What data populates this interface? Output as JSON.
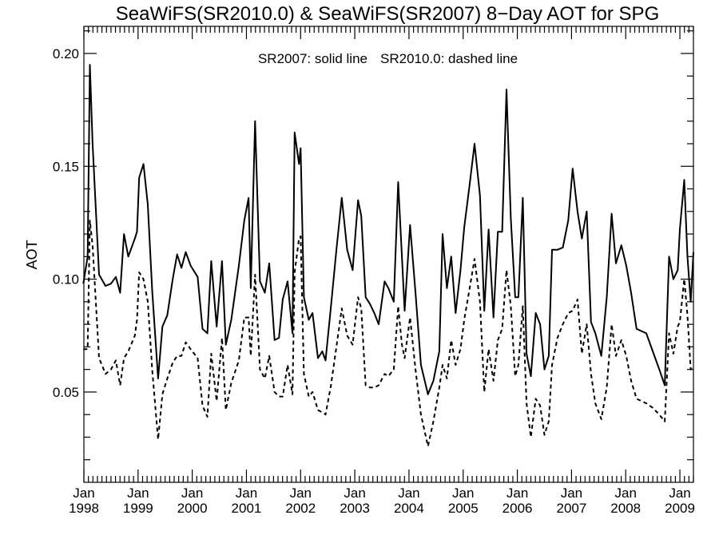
{
  "chart_data": {
    "type": "line",
    "title": "SeaWiFS(SR2010.0) & SeaWiFS(SR2007) 8−Day AOT for SPG",
    "annotation_left": "SR2007: solid line",
    "annotation_right": "SR2010.0: dashed line",
    "xlabel": "",
    "ylabel": "AOT",
    "xlim": [
      1998.0,
      2009.25
    ],
    "ylim": [
      0.01,
      0.212
    ],
    "x_ticks": [
      {
        "x": 1998,
        "month": "Jan",
        "year": "1998"
      },
      {
        "x": 1999,
        "month": "Jan",
        "year": "1999"
      },
      {
        "x": 2000,
        "month": "Jan",
        "year": "2000"
      },
      {
        "x": 2001,
        "month": "Jan",
        "year": "2001"
      },
      {
        "x": 2002,
        "month": "Jan",
        "year": "2002"
      },
      {
        "x": 2003,
        "month": "Jan",
        "year": "2003"
      },
      {
        "x": 2004,
        "month": "Jan",
        "year": "2004"
      },
      {
        "x": 2005,
        "month": "Jan",
        "year": "2005"
      },
      {
        "x": 2006,
        "month": "Jan",
        "year": "2006"
      },
      {
        "x": 2007,
        "month": "Jan",
        "year": "2007"
      },
      {
        "x": 2008,
        "month": "Jan",
        "year": "2008"
      },
      {
        "x": 2009,
        "month": "Jan",
        "year": "2009"
      }
    ],
    "y_ticks": [
      {
        "value": 0.05,
        "label": "0.05"
      },
      {
        "value": 0.1,
        "label": "0.10"
      },
      {
        "value": 0.15,
        "label": "0.15"
      },
      {
        "value": 0.2,
        "label": "0.20"
      }
    ],
    "grid": false,
    "series": [
      {
        "name": "SR2007",
        "style": "solid",
        "points": [
          [
            1997.99,
            0.098
          ],
          [
            1998.07,
            0.11
          ],
          [
            1998.11,
            0.195
          ],
          [
            1998.16,
            0.16
          ],
          [
            1998.28,
            0.102
          ],
          [
            1998.4,
            0.097
          ],
          [
            1998.5,
            0.098
          ],
          [
            1998.59,
            0.101
          ],
          [
            1998.67,
            0.094
          ],
          [
            1998.74,
            0.12
          ],
          [
            1998.82,
            0.11
          ],
          [
            1998.94,
            0.118
          ],
          [
            1998.98,
            0.121
          ],
          [
            1999.02,
            0.145
          ],
          [
            1999.1,
            0.151
          ],
          [
            1999.18,
            0.133
          ],
          [
            1999.26,
            0.095
          ],
          [
            1999.37,
            0.056
          ],
          [
            1999.45,
            0.079
          ],
          [
            1999.54,
            0.084
          ],
          [
            1999.64,
            0.1
          ],
          [
            1999.72,
            0.111
          ],
          [
            1999.8,
            0.105
          ],
          [
            1999.88,
            0.112
          ],
          [
            1999.97,
            0.106
          ],
          [
            2000.1,
            0.101
          ],
          [
            2000.19,
            0.078
          ],
          [
            2000.28,
            0.076
          ],
          [
            2000.35,
            0.108
          ],
          [
            2000.45,
            0.079
          ],
          [
            2000.55,
            0.108
          ],
          [
            2000.62,
            0.071
          ],
          [
            2000.72,
            0.082
          ],
          [
            2000.86,
            0.106
          ],
          [
            2000.96,
            0.126
          ],
          [
            2001.04,
            0.136
          ],
          [
            2001.08,
            0.096
          ],
          [
            2001.16,
            0.17
          ],
          [
            2001.25,
            0.099
          ],
          [
            2001.34,
            0.094
          ],
          [
            2001.42,
            0.107
          ],
          [
            2001.52,
            0.073
          ],
          [
            2001.6,
            0.074
          ],
          [
            2001.67,
            0.091
          ],
          [
            2001.76,
            0.099
          ],
          [
            2001.85,
            0.076
          ],
          [
            2001.89,
            0.165
          ],
          [
            2001.97,
            0.151
          ],
          [
            2002.0,
            0.158
          ],
          [
            2002.06,
            0.092
          ],
          [
            2002.15,
            0.082
          ],
          [
            2002.22,
            0.085
          ],
          [
            2002.32,
            0.065
          ],
          [
            2002.4,
            0.068
          ],
          [
            2002.46,
            0.064
          ],
          [
            2002.56,
            0.088
          ],
          [
            2002.66,
            0.113
          ],
          [
            2002.76,
            0.136
          ],
          [
            2002.86,
            0.113
          ],
          [
            2002.96,
            0.104
          ],
          [
            2003.06,
            0.135
          ],
          [
            2003.12,
            0.128
          ],
          [
            2003.2,
            0.092
          ],
          [
            2003.28,
            0.089
          ],
          [
            2003.36,
            0.085
          ],
          [
            2003.44,
            0.08
          ],
          [
            2003.55,
            0.099
          ],
          [
            2003.62,
            0.096
          ],
          [
            2003.72,
            0.09
          ],
          [
            2003.8,
            0.143
          ],
          [
            2003.87,
            0.11
          ],
          [
            2003.92,
            0.086
          ],
          [
            2004.02,
            0.124
          ],
          [
            2004.12,
            0.094
          ],
          [
            2004.22,
            0.062
          ],
          [
            2004.35,
            0.049
          ],
          [
            2004.45,
            0.055
          ],
          [
            2004.56,
            0.068
          ],
          [
            2004.62,
            0.12
          ],
          [
            2004.7,
            0.096
          ],
          [
            2004.78,
            0.11
          ],
          [
            2004.86,
            0.085
          ],
          [
            2004.95,
            0.104
          ],
          [
            2005.02,
            0.123
          ],
          [
            2005.12,
            0.142
          ],
          [
            2005.21,
            0.16
          ],
          [
            2005.31,
            0.137
          ],
          [
            2005.39,
            0.086
          ],
          [
            2005.47,
            0.122
          ],
          [
            2005.56,
            0.083
          ],
          [
            2005.64,
            0.121
          ],
          [
            2005.72,
            0.121
          ],
          [
            2005.8,
            0.184
          ],
          [
            2005.88,
            0.127
          ],
          [
            2005.96,
            0.092
          ],
          [
            2006.02,
            0.092
          ],
          [
            2006.1,
            0.136
          ],
          [
            2006.17,
            0.067
          ],
          [
            2006.25,
            0.057
          ],
          [
            2006.34,
            0.085
          ],
          [
            2006.42,
            0.08
          ],
          [
            2006.5,
            0.06
          ],
          [
            2006.58,
            0.066
          ],
          [
            2006.64,
            0.113
          ],
          [
            2006.74,
            0.113
          ],
          [
            2006.84,
            0.114
          ],
          [
            2006.94,
            0.126
          ],
          [
            2007.02,
            0.149
          ],
          [
            2007.11,
            0.13
          ],
          [
            2007.19,
            0.118
          ],
          [
            2007.28,
            0.13
          ],
          [
            2007.36,
            0.081
          ],
          [
            2007.44,
            0.076
          ],
          [
            2007.55,
            0.066
          ],
          [
            2007.65,
            0.092
          ],
          [
            2007.74,
            0.129
          ],
          [
            2007.82,
            0.107
          ],
          [
            2007.92,
            0.115
          ],
          [
            2008.01,
            0.106
          ],
          [
            2008.1,
            0.094
          ],
          [
            2008.2,
            0.078
          ],
          [
            2008.29,
            0.077
          ],
          [
            2008.38,
            0.076
          ],
          [
            2008.5,
            0.068
          ],
          [
            2008.62,
            0.06
          ],
          [
            2008.72,
            0.053
          ],
          [
            2008.8,
            0.11
          ],
          [
            2008.88,
            0.1
          ],
          [
            2008.96,
            0.104
          ],
          [
            2009.0,
            0.122
          ],
          [
            2009.08,
            0.144
          ],
          [
            2009.14,
            0.11
          ],
          [
            2009.2,
            0.09
          ],
          [
            2009.25,
            0.112
          ]
        ]
      },
      {
        "name": "SR2010.0",
        "style": "dashed",
        "points": [
          [
            1997.99,
            0.069
          ],
          [
            1998.07,
            0.069
          ],
          [
            1998.11,
            0.126
          ],
          [
            1998.16,
            0.115
          ],
          [
            1998.28,
            0.065
          ],
          [
            1998.4,
            0.058
          ],
          [
            1998.5,
            0.06
          ],
          [
            1998.59,
            0.064
          ],
          [
            1998.67,
            0.053
          ],
          [
            1998.74,
            0.065
          ],
          [
            1998.82,
            0.068
          ],
          [
            1998.94,
            0.075
          ],
          [
            1998.98,
            0.082
          ],
          [
            1999.02,
            0.103
          ],
          [
            1999.1,
            0.1
          ],
          [
            1999.18,
            0.09
          ],
          [
            1999.26,
            0.06
          ],
          [
            1999.37,
            0.029
          ],
          [
            1999.45,
            0.049
          ],
          [
            1999.54,
            0.056
          ],
          [
            1999.64,
            0.063
          ],
          [
            1999.72,
            0.066
          ],
          [
            1999.8,
            0.066
          ],
          [
            1999.88,
            0.072
          ],
          [
            1999.97,
            0.069
          ],
          [
            2000.1,
            0.065
          ],
          [
            2000.19,
            0.044
          ],
          [
            2000.28,
            0.039
          ],
          [
            2000.35,
            0.067
          ],
          [
            2000.45,
            0.046
          ],
          [
            2000.55,
            0.074
          ],
          [
            2000.62,
            0.042
          ],
          [
            2000.72,
            0.054
          ],
          [
            2000.86,
            0.064
          ],
          [
            2000.96,
            0.083
          ],
          [
            2001.04,
            0.083
          ],
          [
            2001.08,
            0.066
          ],
          [
            2001.16,
            0.102
          ],
          [
            2001.25,
            0.06
          ],
          [
            2001.34,
            0.056
          ],
          [
            2001.42,
            0.066
          ],
          [
            2001.52,
            0.05
          ],
          [
            2001.6,
            0.048
          ],
          [
            2001.67,
            0.048
          ],
          [
            2001.76,
            0.062
          ],
          [
            2001.85,
            0.049
          ],
          [
            2001.89,
            0.103
          ],
          [
            2001.97,
            0.118
          ],
          [
            2002.0,
            0.119
          ],
          [
            2002.06,
            0.058
          ],
          [
            2002.15,
            0.048
          ],
          [
            2002.22,
            0.05
          ],
          [
            2002.32,
            0.042
          ],
          [
            2002.4,
            0.041
          ],
          [
            2002.46,
            0.04
          ],
          [
            2002.56,
            0.053
          ],
          [
            2002.66,
            0.07
          ],
          [
            2002.76,
            0.087
          ],
          [
            2002.86,
            0.075
          ],
          [
            2002.96,
            0.071
          ],
          [
            2003.06,
            0.092
          ],
          [
            2003.12,
            0.087
          ],
          [
            2003.2,
            0.053
          ],
          [
            2003.28,
            0.052
          ],
          [
            2003.36,
            0.052
          ],
          [
            2003.44,
            0.053
          ],
          [
            2003.55,
            0.058
          ],
          [
            2003.62,
            0.057
          ],
          [
            2003.72,
            0.06
          ],
          [
            2003.8,
            0.088
          ],
          [
            2003.87,
            0.071
          ],
          [
            2003.92,
            0.065
          ],
          [
            2004.02,
            0.083
          ],
          [
            2004.12,
            0.06
          ],
          [
            2004.22,
            0.04
          ],
          [
            2004.35,
            0.026
          ],
          [
            2004.45,
            0.037
          ],
          [
            2004.56,
            0.052
          ],
          [
            2004.62,
            0.062
          ],
          [
            2004.7,
            0.056
          ],
          [
            2004.78,
            0.073
          ],
          [
            2004.86,
            0.062
          ],
          [
            2004.95,
            0.069
          ],
          [
            2005.02,
            0.082
          ],
          [
            2005.12,
            0.096
          ],
          [
            2005.21,
            0.109
          ],
          [
            2005.31,
            0.09
          ],
          [
            2005.39,
            0.05
          ],
          [
            2005.47,
            0.069
          ],
          [
            2005.56,
            0.055
          ],
          [
            2005.64,
            0.073
          ],
          [
            2005.72,
            0.078
          ],
          [
            2005.8,
            0.104
          ],
          [
            2005.88,
            0.088
          ],
          [
            2005.96,
            0.057
          ],
          [
            2006.02,
            0.062
          ],
          [
            2006.1,
            0.088
          ],
          [
            2006.17,
            0.045
          ],
          [
            2006.25,
            0.03
          ],
          [
            2006.34,
            0.047
          ],
          [
            2006.42,
            0.044
          ],
          [
            2006.5,
            0.031
          ],
          [
            2006.58,
            0.037
          ],
          [
            2006.64,
            0.062
          ],
          [
            2006.74,
            0.074
          ],
          [
            2006.84,
            0.08
          ],
          [
            2006.94,
            0.085
          ],
          [
            2007.02,
            0.086
          ],
          [
            2007.11,
            0.091
          ],
          [
            2007.19,
            0.067
          ],
          [
            2007.28,
            0.08
          ],
          [
            2007.36,
            0.058
          ],
          [
            2007.44,
            0.045
          ],
          [
            2007.55,
            0.038
          ],
          [
            2007.65,
            0.052
          ],
          [
            2007.74,
            0.08
          ],
          [
            2007.82,
            0.066
          ],
          [
            2007.92,
            0.073
          ],
          [
            2008.01,
            0.066
          ],
          [
            2008.1,
            0.055
          ],
          [
            2008.2,
            0.047
          ],
          [
            2008.29,
            0.046
          ],
          [
            2008.38,
            0.045
          ],
          [
            2008.5,
            0.043
          ],
          [
            2008.62,
            0.04
          ],
          [
            2008.72,
            0.037
          ],
          [
            2008.8,
            0.076
          ],
          [
            2008.88,
            0.067
          ],
          [
            2008.96,
            0.079
          ],
          [
            2009.0,
            0.081
          ],
          [
            2009.08,
            0.1
          ],
          [
            2009.14,
            0.084
          ],
          [
            2009.2,
            0.06
          ],
          [
            2009.25,
            0.061
          ]
        ]
      }
    ]
  }
}
